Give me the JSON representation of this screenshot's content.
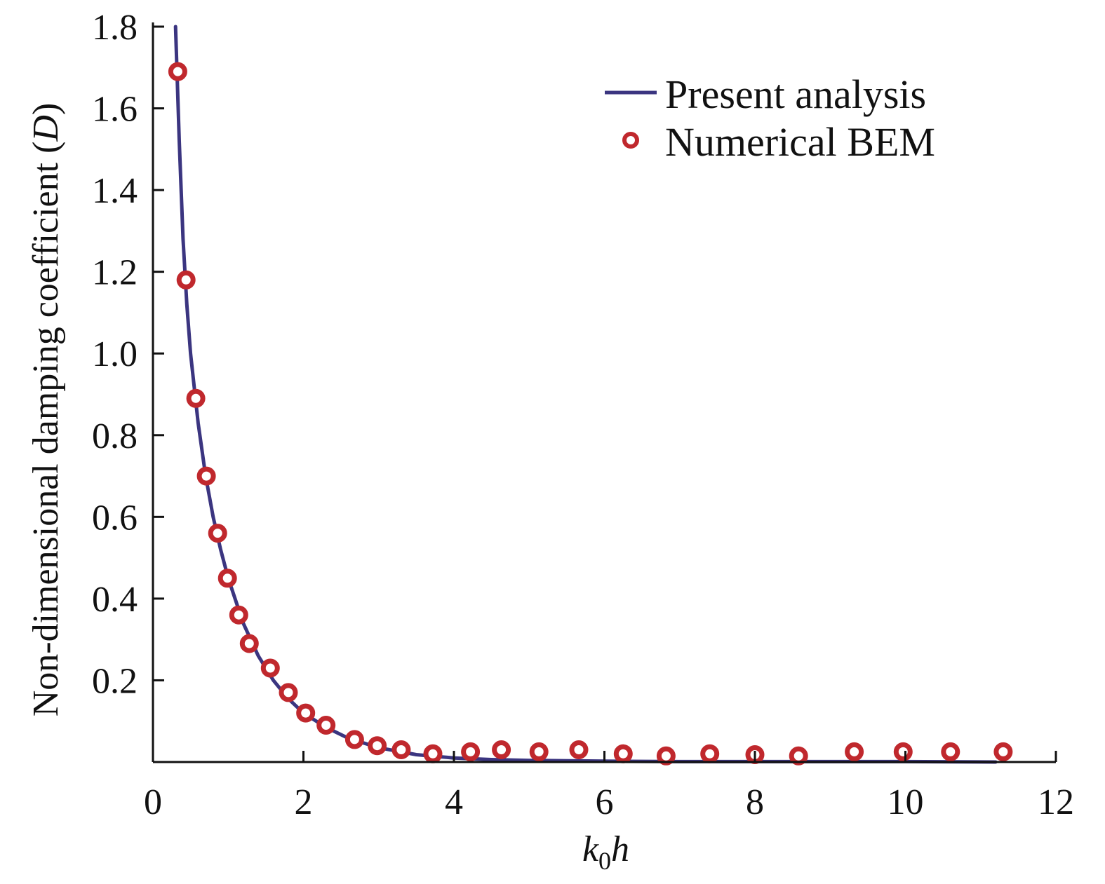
{
  "chart_data": {
    "type": "line",
    "title": "",
    "xlabel": {
      "main": "k",
      "sub": "0",
      "tail": "h"
    },
    "ylabel": {
      "text": "Non-dimensional damping coefficient (",
      "italic": "D",
      "close": ")"
    },
    "xlim": [
      0,
      12
    ],
    "ylim": [
      0,
      1.8
    ],
    "xticks": [
      0,
      2,
      4,
      6,
      8,
      10,
      12
    ],
    "xtick_labels": [
      "0",
      "2",
      "4",
      "6",
      "8",
      "10",
      "12"
    ],
    "yticks": [
      0.2,
      0.4,
      0.6,
      0.8,
      1.0,
      1.2,
      1.4,
      1.6,
      1.8
    ],
    "ytick_labels": [
      "0.2",
      "0.4",
      "0.6",
      "0.8",
      "1.0",
      "1.2",
      "1.4",
      "1.6",
      "1.8"
    ],
    "grid": false,
    "legend_position": "top-right",
    "colors": {
      "line": "#3b3580",
      "marker": "#c0282d",
      "axis": "#111111"
    },
    "series": [
      {
        "name": "Present analysis",
        "kind": "line",
        "x": [
          0.3,
          0.35,
          0.4,
          0.45,
          0.5,
          0.6,
          0.7,
          0.8,
          0.9,
          1.0,
          1.2,
          1.4,
          1.6,
          1.8,
          2.0,
          2.3,
          2.6,
          3.0,
          3.5,
          4.0,
          4.5,
          5.0,
          6.0,
          7.0,
          8.0,
          9.0,
          10.0,
          11.2
        ],
        "y": [
          1.8,
          1.52,
          1.28,
          1.12,
          1.0,
          0.83,
          0.7,
          0.6,
          0.52,
          0.45,
          0.34,
          0.26,
          0.2,
          0.155,
          0.12,
          0.085,
          0.058,
          0.035,
          0.018,
          0.01,
          0.006,
          0.004,
          0.002,
          0.001,
          0.001,
          0.001,
          0.001,
          0.0
        ]
      },
      {
        "name": "Numerical BEM",
        "kind": "scatter",
        "x": [
          0.33,
          0.44,
          0.57,
          0.71,
          0.86,
          0.99,
          1.14,
          1.28,
          1.56,
          1.8,
          2.03,
          2.3,
          2.68,
          2.98,
          3.3,
          3.72,
          4.22,
          4.63,
          5.13,
          5.66,
          6.25,
          6.82,
          7.4,
          8.0,
          8.58,
          9.32,
          9.97,
          10.6,
          11.3
        ],
        "y": [
          1.69,
          1.18,
          0.89,
          0.7,
          0.56,
          0.45,
          0.36,
          0.29,
          0.23,
          0.17,
          0.12,
          0.09,
          0.055,
          0.04,
          0.03,
          0.02,
          0.025,
          0.03,
          0.025,
          0.03,
          0.02,
          0.015,
          0.02,
          0.018,
          0.015,
          0.025,
          0.025,
          0.025,
          0.025
        ]
      }
    ]
  }
}
